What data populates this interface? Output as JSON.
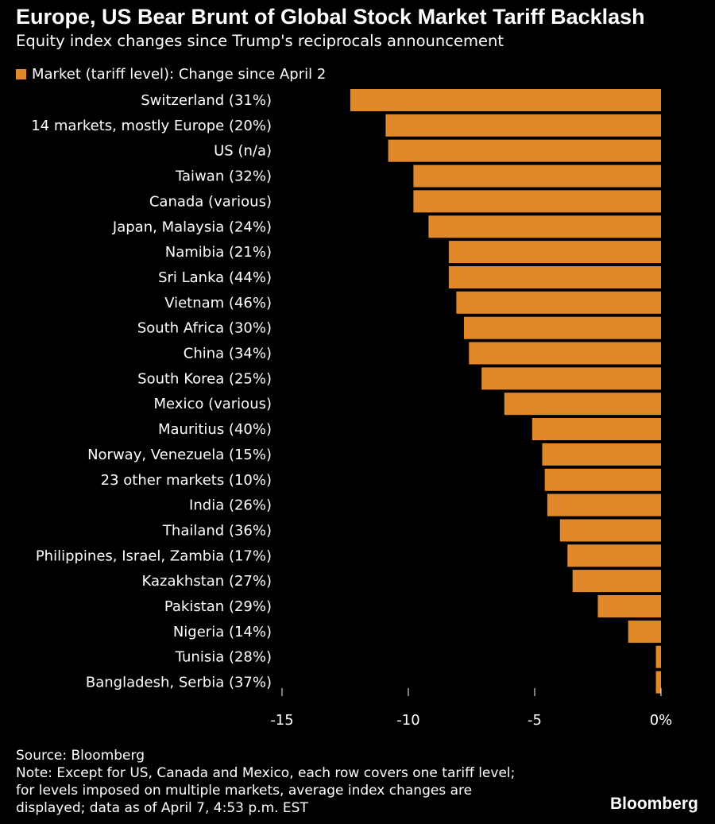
{
  "colors": {
    "background": "#000000",
    "bar": "#e0882a",
    "text": "#ffffff",
    "tick": "#ffffff"
  },
  "header": {
    "title": "Europe, US Bear Brunt of Global Stock Market Tariff Backlash",
    "subtitle": "Equity index changes since Trump's reciprocals announcement"
  },
  "footer": {
    "source": "Source: Bloomberg",
    "note_lines": [
      "Note: Except for US, Canada and Mexico, each row covers one tariff level;",
      "for levels imposed on multiple markets, average index changes are",
      "displayed; data as of April 7, 4:53 p.m. EST"
    ],
    "brand": "Bloomberg"
  },
  "chart_data": {
    "type": "bar",
    "orientation": "horizontal",
    "legend": {
      "label": "Market (tariff level): Change since April 2",
      "placement": "top-left"
    },
    "categories": [
      "Switzerland (31%)",
      "14 markets, mostly Europe (20%)",
      "US (n/a)",
      "Taiwan (32%)",
      "Canada (various)",
      "Japan, Malaysia (24%)",
      "Namibia (21%)",
      "Sri Lanka (44%)",
      "Vietnam (46%)",
      "South Africa (30%)",
      "China (34%)",
      "South Korea (25%)",
      "Mexico (various)",
      "Mauritius (40%)",
      "Norway, Venezuela (15%)",
      "23 other markets (10%)",
      "India (26%)",
      "Thailand (36%)",
      "Philippines, Israel, Zambia (17%)",
      "Kazakhstan (27%)",
      "Pakistan (29%)",
      "Nigeria (14%)",
      "Tunisia (28%)",
      "Bangladesh, Serbia (37%)"
    ],
    "series": [
      {
        "name": "Market (tariff level): Change since April 2",
        "values": [
          -12.3,
          -10.9,
          -10.8,
          -9.8,
          -9.8,
          -9.2,
          -8.4,
          -8.4,
          -8.1,
          -7.8,
          -7.6,
          -7.1,
          -6.2,
          -5.1,
          -4.7,
          -4.6,
          -4.5,
          -4.0,
          -3.7,
          -3.5,
          -2.5,
          -1.3,
          -0.2,
          -0.2
        ]
      }
    ],
    "x_axis": {
      "ticks": [
        -15,
        -10,
        -5,
        0
      ],
      "tick_labels": [
        "-15",
        "-10",
        "-5",
        "0%"
      ],
      "range": [
        -15,
        0
      ]
    },
    "grid": false
  }
}
